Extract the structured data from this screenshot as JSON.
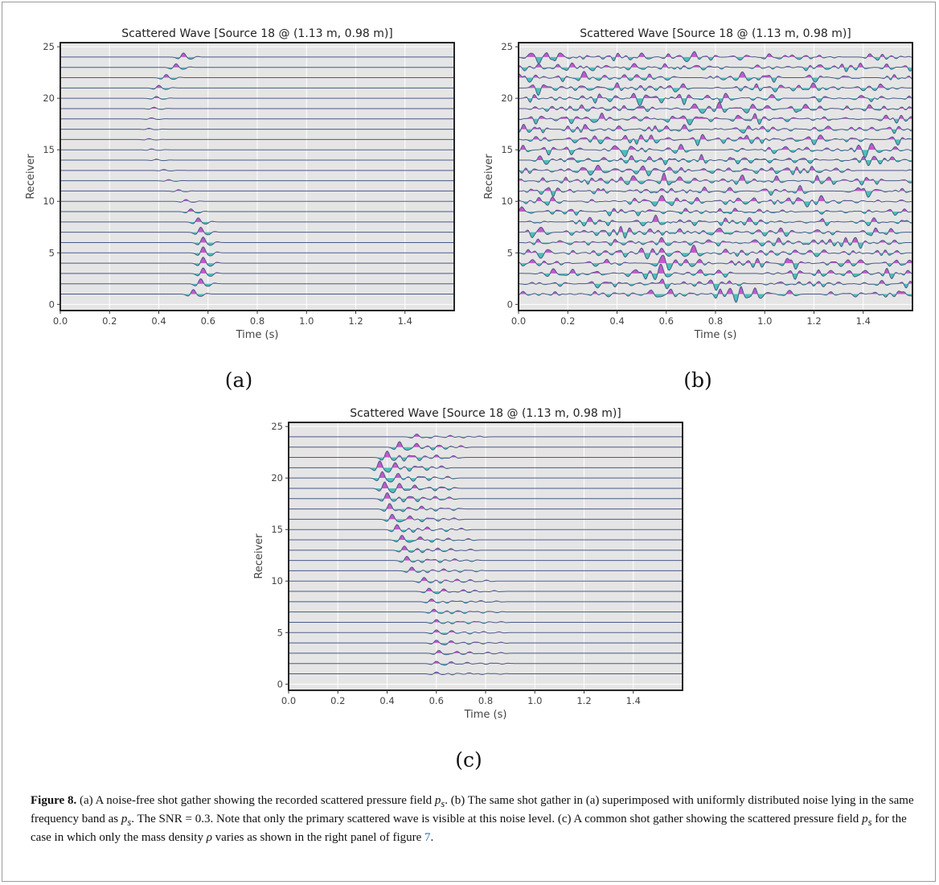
{
  "chart_data": [
    {
      "type": "line",
      "panel": "a",
      "title": "Scattered Wave [Source 18 @ (1.13 m, 0.98 m)]",
      "xlabel": "Time (s)",
      "ylabel": "Receiver",
      "xlim": [
        0.0,
        1.6
      ],
      "ylim": [
        -0.6,
        25.4
      ],
      "xticks": [
        "0.0",
        "0.2",
        "0.4",
        "0.6",
        "0.8",
        "1.0",
        "1.2",
        "1.4"
      ],
      "yticks": [
        "0",
        "5",
        "10",
        "15",
        "20",
        "25"
      ],
      "traces": 24,
      "grid": true,
      "fill_positive_color": "#c040c8",
      "fill_negative_color": "#30b8b0",
      "trace_color": "#4a5a88",
      "arrival_times": [
        0.54,
        0.57,
        0.58,
        0.58,
        0.58,
        0.58,
        0.57,
        0.56,
        0.53,
        0.51,
        0.48,
        0.44,
        0.42,
        0.39,
        0.37,
        0.36,
        0.36,
        0.37,
        0.38,
        0.39,
        0.4,
        0.43,
        0.47,
        0.5
      ],
      "amplitudes": [
        0.5,
        0.55,
        0.6,
        0.65,
        0.65,
        0.6,
        0.55,
        0.45,
        0.3,
        0.2,
        0.15,
        0.12,
        0.1,
        0.1,
        0.1,
        0.1,
        0.1,
        0.12,
        0.15,
        0.2,
        0.3,
        0.35,
        0.4,
        0.45
      ]
    },
    {
      "type": "line",
      "panel": "b",
      "title": "Scattered Wave [Source 18 @ (1.13 m, 0.98 m)]",
      "xlabel": "Time (s)",
      "ylabel": "Receiver",
      "xlim": [
        0.0,
        1.6
      ],
      "ylim": [
        -0.6,
        25.4
      ],
      "xticks": [
        "0.0",
        "0.2",
        "0.4",
        "0.6",
        "0.8",
        "1.0",
        "1.2",
        "1.4"
      ],
      "yticks": [
        "0",
        "5",
        "10",
        "15",
        "20",
        "25"
      ],
      "traces": 24,
      "grid": true,
      "noise": true,
      "fill_positive_color": "#c040c8",
      "fill_negative_color": "#30b8b0",
      "trace_color": "#4a5a88",
      "arrival_times": [
        0.54,
        0.57,
        0.58,
        0.58,
        0.58,
        0.58,
        0.57,
        0.56,
        0.53,
        0.51,
        0.48,
        0.44,
        0.42,
        0.39,
        0.37,
        0.36,
        0.36,
        0.37,
        0.38,
        0.39,
        0.4,
        0.43,
        0.47,
        0.5
      ],
      "amplitudes": [
        0.5,
        0.55,
        0.6,
        0.65,
        0.65,
        0.6,
        0.55,
        0.45,
        0.3,
        0.2,
        0.15,
        0.12,
        0.1,
        0.1,
        0.1,
        0.1,
        0.1,
        0.12,
        0.15,
        0.2,
        0.3,
        0.35,
        0.4,
        0.45
      ]
    },
    {
      "type": "line",
      "panel": "c",
      "title": "Scattered Wave [Source 18 @ (1.13 m, 0.98 m)]",
      "xlabel": "Time (s)",
      "ylabel": "Receiver",
      "xlim": [
        0.0,
        1.6
      ],
      "ylim": [
        -0.6,
        25.4
      ],
      "xticks": [
        "0.0",
        "0.2",
        "0.4",
        "0.6",
        "0.8",
        "1.0",
        "1.2",
        "1.4"
      ],
      "yticks": [
        "0",
        "5",
        "10",
        "15",
        "20",
        "25"
      ],
      "traces": 24,
      "grid": true,
      "multi_arrival": true,
      "fill_positive_color": "#c040c8",
      "fill_negative_color": "#30b8b0",
      "trace_color": "#4a5a88",
      "arrival_times": [
        0.6,
        0.6,
        0.61,
        0.6,
        0.6,
        0.6,
        0.59,
        0.58,
        0.57,
        0.55,
        0.5,
        0.48,
        0.47,
        0.46,
        0.44,
        0.42,
        0.41,
        0.4,
        0.39,
        0.38,
        0.37,
        0.4,
        0.45,
        0.52
      ],
      "amplitudes": [
        0.2,
        0.25,
        0.3,
        0.3,
        0.3,
        0.3,
        0.3,
        0.3,
        0.35,
        0.4,
        0.4,
        0.45,
        0.45,
        0.5,
        0.55,
        0.55,
        0.6,
        0.65,
        0.7,
        0.7,
        0.75,
        0.7,
        0.6,
        0.3
      ]
    }
  ],
  "panel_labels": [
    "(a)",
    "(b)",
    "(c)"
  ],
  "caption": {
    "lead": "Figure 8.",
    "t1": " (a) A noise-free shot gather showing the recorded scattered pressure field ",
    "ps1": "p",
    "ps1sub": "s",
    "t2": ". (b) The same shot gather in (a) superimposed with uniformly distributed noise lying in the same frequency band as ",
    "ps2": "p",
    "ps2sub": "s",
    "t3": ". The SNR = 0.3. Note that only the primary scattered wave is visible at this noise level. (c) A common shot gather showing the scattered pressure field ",
    "ps3": "p",
    "ps3sub": "s",
    "t4": " for the case in which only the mass density ",
    "rho": "ρ",
    "t5": " varies as shown in the right panel of figure ",
    "fig_ref": "7",
    "t6": "."
  }
}
